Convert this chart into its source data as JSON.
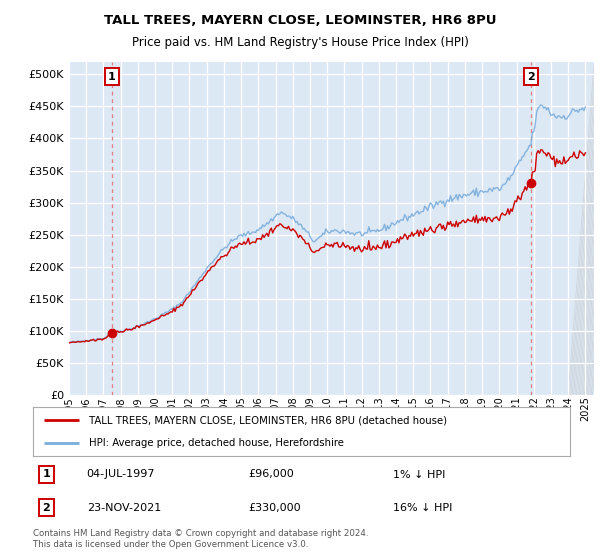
{
  "title": "TALL TREES, MAYERN CLOSE, LEOMINSTER, HR6 8PU",
  "subtitle": "Price paid vs. HM Land Registry's House Price Index (HPI)",
  "legend_line1": "TALL TREES, MAYERN CLOSE, LEOMINSTER, HR6 8PU (detached house)",
  "legend_line2": "HPI: Average price, detached house, Herefordshire",
  "footnote": "Contains HM Land Registry data © Crown copyright and database right 2024.\nThis data is licensed under the Open Government Licence v3.0.",
  "sale1_date": "04-JUL-1997",
  "sale1_price": 96000,
  "sale1_note": "1% ↓ HPI",
  "sale2_date": "23-NOV-2021",
  "sale2_price": 330000,
  "sale2_note": "16% ↓ HPI",
  "ylim": [
    0,
    520000
  ],
  "yticks": [
    0,
    50000,
    100000,
    150000,
    200000,
    250000,
    300000,
    350000,
    400000,
    450000,
    500000
  ],
  "hpi_color": "#7aaddc",
  "price_color": "#cc0000",
  "bg_color": "#dde8f5",
  "grid_color": "#ffffff",
  "marker_color": "#cc0000",
  "dashed_color": "#e08080",
  "box_color": "#cc0000",
  "hatch_color": "#cccccc",
  "xlim_start": 1995.0,
  "xlim_end": 2025.5,
  "sale1_year": 1997.5,
  "sale2_year": 2021.833
}
